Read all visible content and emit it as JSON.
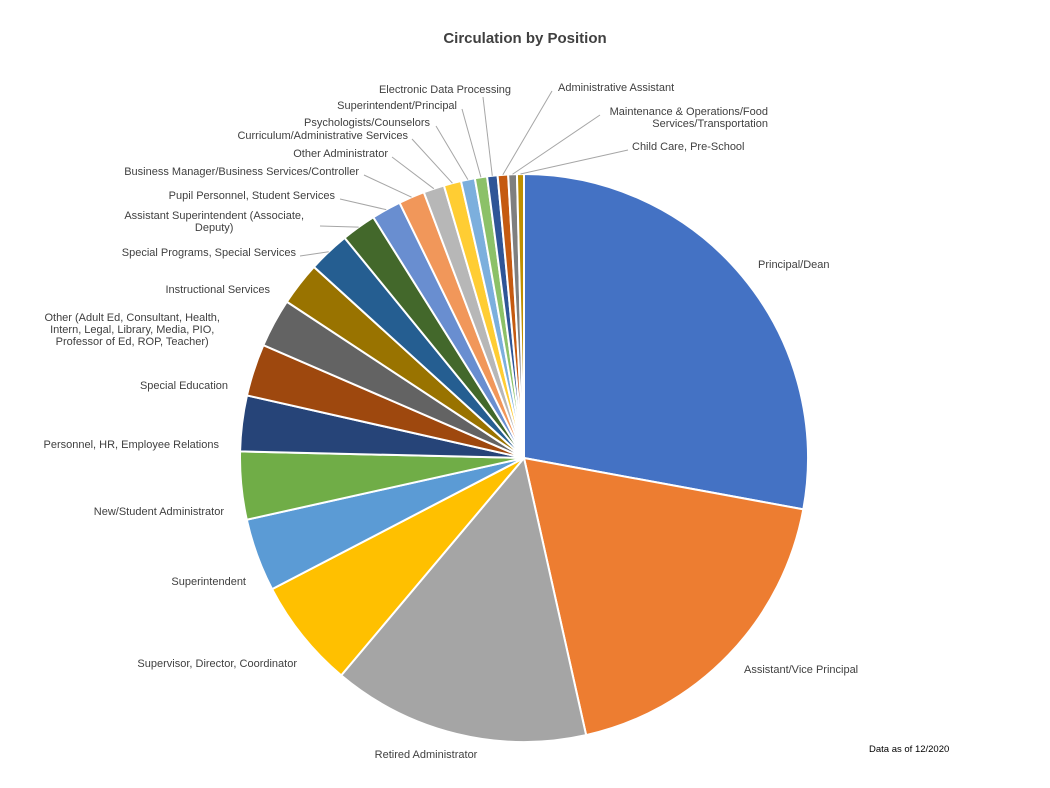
{
  "chart_data": {
    "type": "pie",
    "title": "Circulation by Position",
    "footnote": "Data as of 12/2020",
    "slices": [
      {
        "label": "Principal/Dean",
        "value": 28.2,
        "color": "#4472C4"
      },
      {
        "label": "Assistant/Vice Principal",
        "value": 18.8,
        "color": "#ED7D31"
      },
      {
        "label": "Retired Administrator",
        "value": 14.8,
        "color": "#A5A5A5"
      },
      {
        "label": "Supervisor, Director, Coordinator",
        "value": 6.3,
        "color": "#FFC000"
      },
      {
        "label": "Superintendent",
        "value": 4.2,
        "color": "#5B9BD5"
      },
      {
        "label": "New/Student Administrator",
        "value": 3.9,
        "color": "#70AD47"
      },
      {
        "label": "Personnel, HR, Employee Relations",
        "value": 3.2,
        "color": "#264478"
      },
      {
        "label": "Special Education",
        "value": 3.0,
        "color": "#9E480E"
      },
      {
        "label": "Other (Adult Ed, Consultant, Health,\nIntern, Legal, Library, Media, PIO,\nProfessor of Ed, ROP, Teacher)",
        "value": 2.8,
        "color": "#636363"
      },
      {
        "label": "Instructional Services",
        "value": 2.5,
        "color": "#997300"
      },
      {
        "label": "Special Programs, Special Services",
        "value": 2.4,
        "color": "#255E91"
      },
      {
        "label": "Assistant Superintendent (Associate,\nDeputy)",
        "value": 2.0,
        "color": "#43682B"
      },
      {
        "label": "Pupil Personnel, Student Services",
        "value": 1.7,
        "color": "#698ED0"
      },
      {
        "label": "Business Manager/Business Services/Controller",
        "value": 1.5,
        "color": "#F1975A"
      },
      {
        "label": "Other Administrator",
        "value": 1.2,
        "color": "#B7B7B7"
      },
      {
        "label": "Curriculum/Administrative Services",
        "value": 1.0,
        "color": "#FFCD33"
      },
      {
        "label": "Psychologists/Counselors",
        "value": 0.8,
        "color": "#7CAFDD"
      },
      {
        "label": "Superintendent/Principal",
        "value": 0.7,
        "color": "#8CC168"
      },
      {
        "label": "Electronic Data Processing",
        "value": 0.6,
        "color": "#2F5597"
      },
      {
        "label": "Administrative Assistant",
        "value": 0.6,
        "color": "#C55A11"
      },
      {
        "label": "Maintenance & Operations/Food\nServices/Transportation",
        "value": 0.5,
        "color": "#7F7F7F"
      },
      {
        "label": "Child Care, Pre-School",
        "value": 0.4,
        "color": "#BF9000"
      }
    ]
  }
}
